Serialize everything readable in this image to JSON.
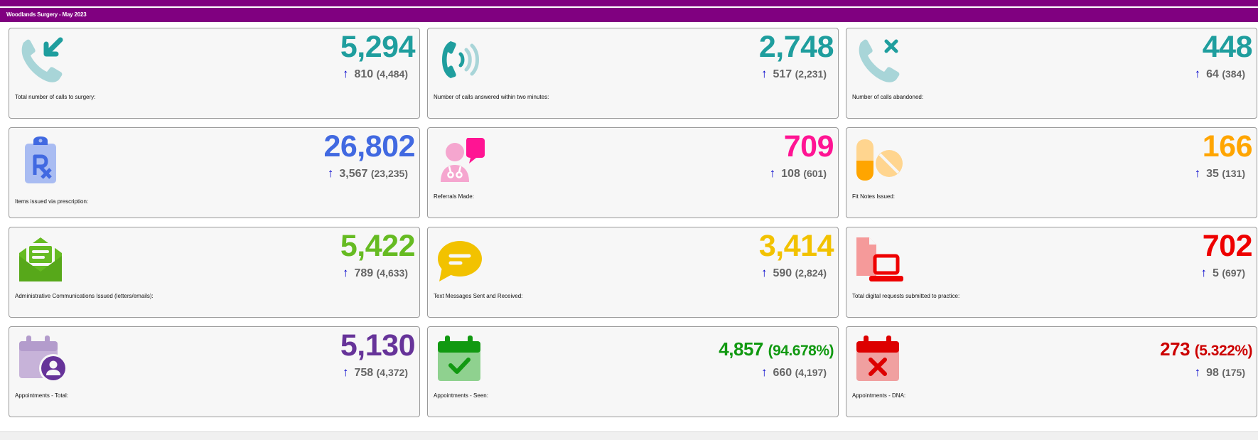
{
  "header": {
    "title": "Woodlands Surgery - May 2023"
  },
  "colors": {
    "brand": "#800080",
    "teal": "#1f9e9e",
    "blue": "#4169e1",
    "pink": "#ff1493",
    "orange": "#ffa500",
    "green": "#66bb22",
    "yellow": "#f2c200",
    "red": "#ee0000",
    "purple": "#663399",
    "darkgreen": "#119911",
    "darkred": "#cc0000"
  },
  "cards": {
    "calls_total": {
      "value": "5,294",
      "change": "810",
      "previous": "(4,484)",
      "label": "Total number of calls to surgery:",
      "icon": "phone-incoming-icon"
    },
    "calls_answered": {
      "value": "2,748",
      "change": "517",
      "previous": "(2,231)",
      "label": "Number of calls answered within two minutes:",
      "icon": "phone-ringing-icon"
    },
    "calls_abandoned": {
      "value": "448",
      "change": "64",
      "previous": "(384)",
      "label": "Number of calls abandoned:",
      "icon": "phone-missed-icon"
    },
    "prescriptions": {
      "value": "26,802",
      "change": "3,567",
      "previous": "(23,235)",
      "label": "Items issued via prescription:",
      "icon": "prescription-clipboard-icon"
    },
    "referrals": {
      "value": "709",
      "change": "108",
      "previous": "(601)",
      "label": "Referrals Made:",
      "icon": "doctor-chat-icon"
    },
    "fit_notes": {
      "value": "166",
      "change": "35",
      "previous": "(131)",
      "label": "Fit Notes Issued:",
      "icon": "pills-icon"
    },
    "admin_comms": {
      "value": "5,422",
      "change": "789",
      "previous": "(4,633)",
      "label": "Administrative Communications Issued (letters/emails):",
      "icon": "envelope-open-icon"
    },
    "text_messages": {
      "value": "3,414",
      "change": "590",
      "previous": "(2,824)",
      "label": "Text Messages Sent and Received:",
      "icon": "message-bubble-icon"
    },
    "digital_requests": {
      "value": "702",
      "change": "5",
      "previous": "(697)",
      "label": "Total digital requests submitted to practice:",
      "icon": "file-laptop-icon"
    },
    "appointments_total": {
      "value": "5,130",
      "change": "758",
      "previous": "(4,372)",
      "label": "Appointments - Total:",
      "icon": "calendar-user-icon"
    },
    "appointments_seen": {
      "value": "4,857",
      "percent": "(94.678%)",
      "change": "660",
      "previous": "(4,197)",
      "label": "Appointments - Seen:",
      "icon": "calendar-check-icon"
    },
    "appointments_dna": {
      "value": "273",
      "percent": "(5.322%)",
      "change": "98",
      "previous": "(175)",
      "label": "Appointments - DNA:",
      "icon": "calendar-x-icon"
    }
  }
}
